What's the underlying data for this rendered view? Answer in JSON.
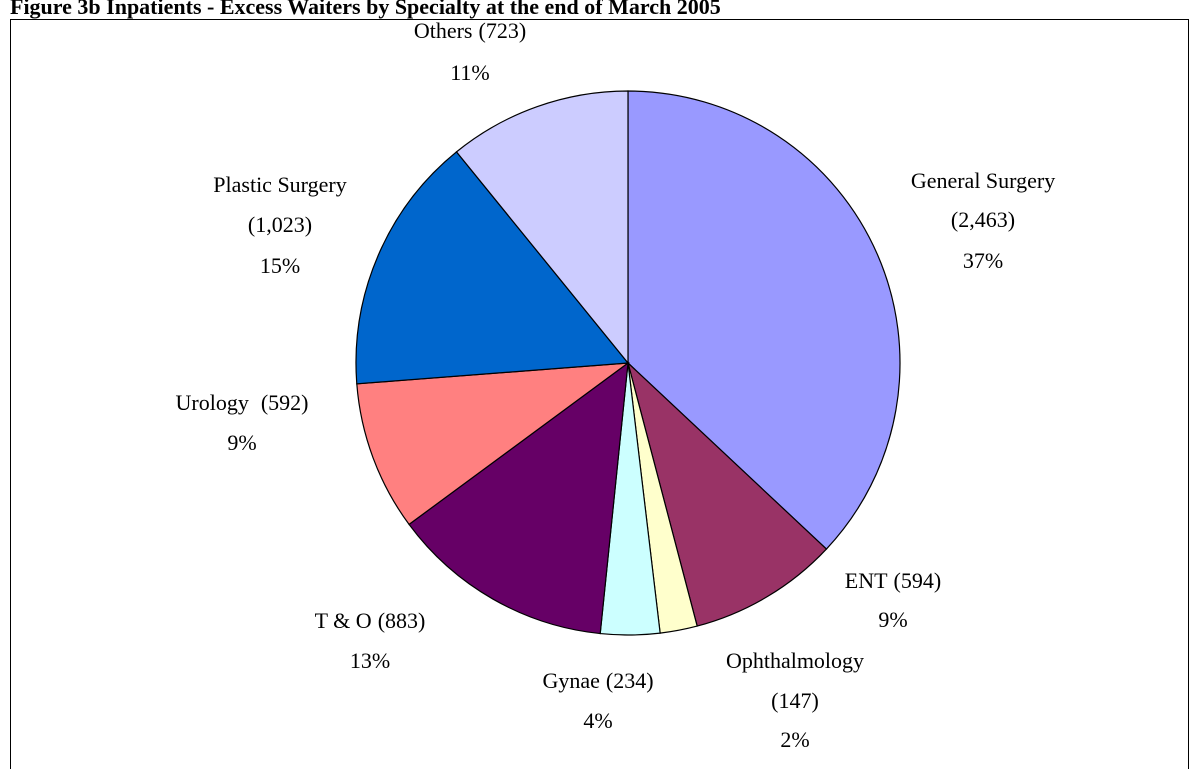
{
  "chart_data": {
    "type": "pie",
    "title": "Figure 3b      Inpatients - Excess Waiters  by Specialty at the end of March 2005",
    "categories": [
      "General Surgery",
      "ENT",
      "Ophthalmology",
      "Gynae",
      "T & O",
      "Urology",
      "Plastic Surgery",
      "Others"
    ],
    "values": [
      2463,
      594,
      147,
      234,
      883,
      592,
      1023,
      723
    ],
    "value_labels": [
      "(2,463)",
      "(594)",
      "(147)",
      "(234)",
      "(883)",
      "(592)",
      "(1,023)",
      "(723)"
    ],
    "percent_labels": [
      "37%",
      "9%",
      "2%",
      "4%",
      "13%",
      "9%",
      "15%",
      "11%"
    ],
    "colors": [
      "#9999ff",
      "#993366",
      "#ffffcc",
      "#ccffff",
      "#660066",
      "#ff8080",
      "#0066cc",
      "#ccccff"
    ]
  }
}
